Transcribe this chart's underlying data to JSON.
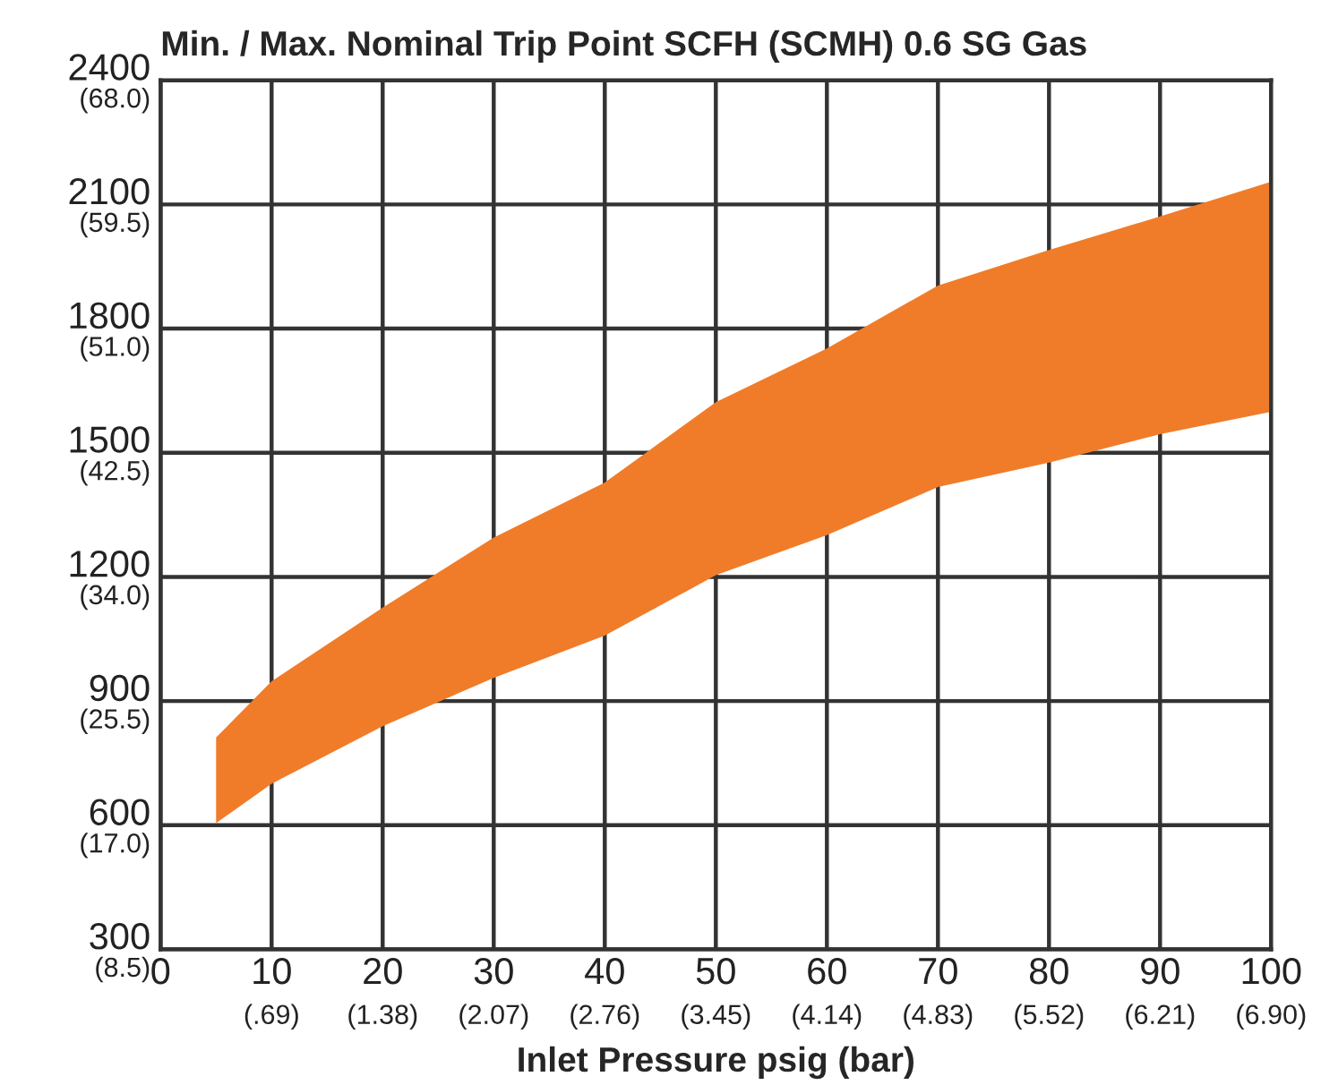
{
  "chart_data": {
    "type": "area",
    "title": "Min. / Max. Nominal Trip Point SCFH (SCMH) 0.6 SG Gas",
    "xlabel": "Inlet Pressure psig (bar)",
    "x": [
      5,
      10,
      20,
      30,
      40,
      50,
      60,
      70,
      80,
      90,
      100
    ],
    "series": [
      {
        "color": "#f07c2a",
        "values": [
          null,
          null,
          null,
          null,
          null,
          null,
          null,
          null,
          null,
          null,
          null
        ],
        "upper": [
          812,
          948,
          1126,
          1295,
          1428,
          1622,
          1752,
          1904,
          1990,
          2071,
          2155
        ],
        "lower": [
          605,
          700,
          839,
          956,
          1058,
          1204,
          1301,
          1417,
          1476,
          1545,
          1599
        ]
      }
    ],
    "xlim": [
      0,
      100
    ],
    "ylim": [
      300,
      2400
    ],
    "xticks": [
      0,
      10,
      20,
      30,
      40,
      50,
      60,
      70,
      80,
      90,
      100
    ],
    "yticks": [
      300,
      600,
      900,
      1200,
      1500,
      1800,
      2100,
      2400
    ],
    "x2lim": [
      0,
      6.9
    ],
    "x2ticks": [
      {
        "value": 0.69,
        "label": "(.69)"
      },
      {
        "value": 1.38,
        "label": "(1.38)"
      },
      {
        "value": 2.07,
        "label": "(2.07)"
      },
      {
        "value": 2.76,
        "label": "(2.76)"
      },
      {
        "value": 3.45,
        "label": "(3.45)"
      },
      {
        "value": 4.14,
        "label": "(4.14)"
      },
      {
        "value": 4.83,
        "label": "(4.83)"
      },
      {
        "value": 5.52,
        "label": "(5.52)"
      },
      {
        "value": 6.21,
        "label": "(6.21)"
      },
      {
        "value": 6.9,
        "label": "(6.90)"
      }
    ],
    "y2lim": [
      8.5,
      68.0
    ],
    "y2ticks": [
      {
        "value": 8.5,
        "label": "(8.5)"
      },
      {
        "value": 17.0,
        "label": "(17.0)"
      },
      {
        "value": 25.5,
        "label": "(25.5)"
      },
      {
        "value": 34.0,
        "label": "(34.0)"
      },
      {
        "value": 42.5,
        "label": "(42.5)"
      },
      {
        "value": 51.0,
        "label": "(51.0)"
      },
      {
        "value": 59.5,
        "label": "(59.5)"
      },
      {
        "value": 68.0,
        "label": "(68.0)"
      }
    ],
    "grid": true
  }
}
